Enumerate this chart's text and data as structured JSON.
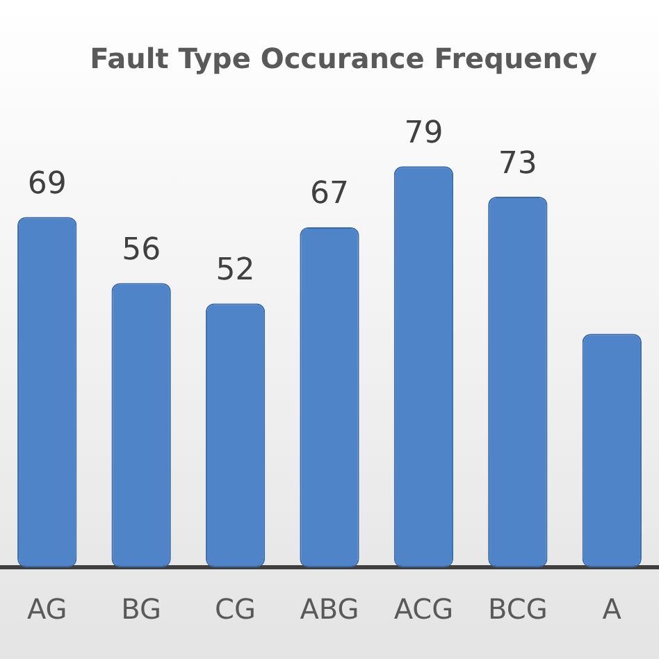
{
  "chart_data": {
    "type": "bar",
    "title": "Fault Type Occurance Frequency",
    "categories": [
      "AG",
      "BG",
      "CG",
      "ABG",
      "ACG",
      "BCG",
      "A"
    ],
    "values": [
      69,
      56,
      52,
      67,
      79,
      73,
      46
    ],
    "value_labels": [
      "69",
      "56",
      "52",
      "67",
      "79",
      "73",
      null
    ],
    "color": "#4f84c8"
  }
}
